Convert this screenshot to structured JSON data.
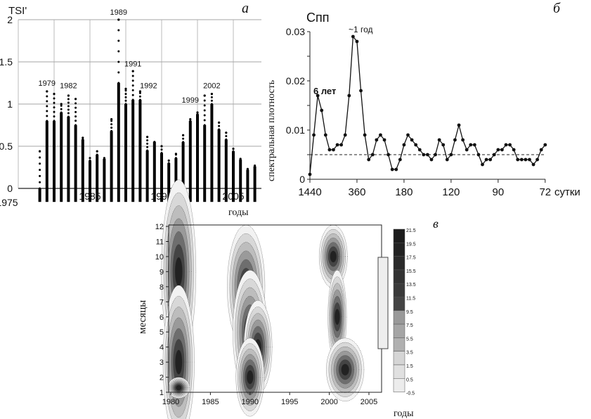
{
  "chart_data": [
    {
      "type": "scatter",
      "panel_label": "а",
      "ylabel": "TSI'",
      "xlabel": "годы",
      "ylim": [
        0,
        2
      ],
      "xlim": [
        1975,
        2008
      ],
      "yticks": [
        "0",
        "0.5",
        "1",
        "1.5",
        "2"
      ],
      "xticks": [
        "1975",
        "1985",
        "1995",
        "2005"
      ],
      "grid": true,
      "annotations": [
        "1979",
        "1982",
        "1989",
        "1991",
        "1992",
        "1999",
        "2002"
      ],
      "years": [
        1978,
        1979,
        1980,
        1981,
        1982,
        1983,
        1984,
        1985,
        1986,
        1987,
        1988,
        1989,
        1990,
        1991,
        1992,
        1993,
        1994,
        1995,
        1996,
        1997,
        1998,
        1999,
        2000,
        2001,
        2002,
        2003,
        2004,
        2005,
        2006,
        2007,
        2008
      ],
      "dense_top": [
        0.0,
        0.8,
        0.8,
        0.9,
        0.85,
        0.75,
        0.58,
        0.33,
        0.4,
        0.35,
        0.68,
        1.25,
        1.0,
        1.05,
        1.05,
        0.45,
        0.55,
        0.42,
        0.3,
        0.36,
        0.55,
        0.8,
        0.88,
        0.75,
        1.0,
        0.7,
        0.58,
        0.44,
        0.34,
        0.22,
        0.26
      ],
      "max": [
        0.44,
        1.15,
        1.12,
        1.0,
        1.1,
        1.06,
        0.6,
        0.36,
        0.44,
        0.36,
        0.82,
        2.0,
        1.18,
        1.39,
        1.15,
        0.61,
        0.55,
        0.5,
        0.33,
        0.41,
        0.63,
        0.82,
        0.9,
        1.1,
        1.12,
        0.78,
        0.66,
        0.47,
        0.35,
        0.23,
        0.27
      ]
    },
    {
      "type": "line",
      "panel_label": "б",
      "title": "Спп",
      "ylabel": "спектральная плотность",
      "xlabel": "сутки",
      "ylim": [
        0,
        0.03
      ],
      "yticks": [
        "0",
        "0.01",
        "0.02",
        "0.03"
      ],
      "xticks": [
        "1440",
        "360",
        "180",
        "120",
        "90",
        "72"
      ],
      "annotations": [
        "6 лет",
        "~1 год"
      ],
      "threshold": 0.005,
      "values": [
        0.001,
        0.009,
        0.017,
        0.014,
        0.009,
        0.006,
        0.006,
        0.007,
        0.007,
        0.009,
        0.017,
        0.029,
        0.028,
        0.018,
        0.009,
        0.004,
        0.005,
        0.008,
        0.009,
        0.008,
        0.005,
        0.002,
        0.002,
        0.004,
        0.007,
        0.009,
        0.008,
        0.007,
        0.006,
        0.005,
        0.005,
        0.004,
        0.005,
        0.008,
        0.007,
        0.004,
        0.005,
        0.008,
        0.011,
        0.008,
        0.006,
        0.007,
        0.007,
        0.005,
        0.003,
        0.004,
        0.004,
        0.005,
        0.006,
        0.006,
        0.007,
        0.007,
        0.006,
        0.004,
        0.004,
        0.004,
        0.004,
        0.003,
        0.004,
        0.006,
        0.007
      ]
    },
    {
      "type": "heatmap",
      "panel_label": "в",
      "ylabel": "месяцы",
      "xlabel": "годы",
      "xlim": [
        1979,
        2007
      ],
      "ylim": [
        1,
        12
      ],
      "xticks": [
        "1980",
        "1985",
        "1990",
        "1995",
        "2000",
        "2005"
      ],
      "yticks": [
        "1",
        "2",
        "3",
        "4",
        "5",
        "6",
        "7",
        "8",
        "9",
        "10",
        "11",
        "12"
      ],
      "colorbar": [
        "21.5",
        "19.5",
        "17.5",
        "15.5",
        "13.5",
        "11.5",
        "9.5",
        "7.5",
        "5.5",
        "3.5",
        "1.5",
        "0.5",
        "-0.5"
      ]
    }
  ]
}
